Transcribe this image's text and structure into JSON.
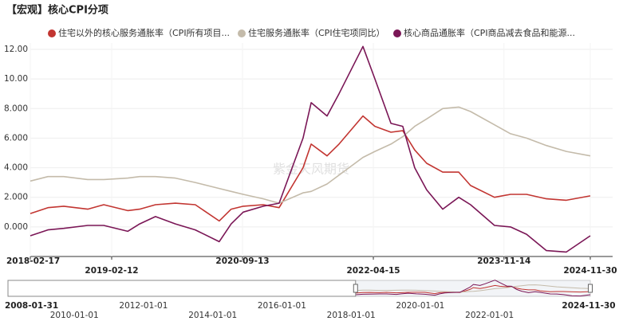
{
  "chart_data": {
    "type": "line",
    "title": "【宏观】核心CPI分项",
    "watermark": "紫金天风期货",
    "x": [
      "2018-02-17",
      "2018-05-06",
      "2018-07-15",
      "2018-10-29",
      "2019-01-08",
      "2019-04-24",
      "2019-06-16",
      "2019-08-25",
      "2019-11-21",
      "2020-02-17",
      "2020-06-02",
      "2020-07-25",
      "2020-09-16",
      "2020-12-14",
      "2021-02-22",
      "2021-06-08",
      "2021-07-14",
      "2021-09-22",
      "2021-11-14",
      "2022-02-28",
      "2022-04-22",
      "2022-07-02",
      "2022-08-23",
      "2022-10-15",
      "2022-12-07",
      "2023-02-16",
      "2023-04-28",
      "2023-06-19",
      "2023-10-03",
      "2023-12-13",
      "2024-02-22",
      "2024-05-20",
      "2024-08-16",
      "2024-11-30"
    ],
    "series": [
      {
        "name": "住宅以外的核心服务通胀率（CPI所有项目...",
        "color": "#c23531",
        "values": [
          0.9,
          1.3,
          1.4,
          1.2,
          1.5,
          1.1,
          1.2,
          1.5,
          1.6,
          1.5,
          0.4,
          1.2,
          1.4,
          1.5,
          1.3,
          4.0,
          5.6,
          4.8,
          5.6,
          7.5,
          6.8,
          6.4,
          6.5,
          5.2,
          4.3,
          3.7,
          3.7,
          2.8,
          2.0,
          2.2,
          2.2,
          1.9,
          1.8,
          2.1
        ]
      },
      {
        "name": "住宅服务通胀率（CPI住宅项同比）",
        "color": "#c4bbaa",
        "values": [
          3.1,
          3.4,
          3.4,
          3.2,
          3.2,
          3.3,
          3.4,
          3.4,
          3.3,
          3.0,
          2.6,
          2.4,
          2.2,
          1.9,
          1.6,
          2.3,
          2.4,
          2.9,
          3.5,
          4.7,
          5.1,
          5.6,
          6.1,
          6.8,
          7.3,
          8.0,
          8.1,
          7.8,
          6.9,
          6.3,
          6.0,
          5.5,
          5.1,
          4.8
        ]
      },
      {
        "name": "核心商品通胀率（CPI商品减去食品和能源...",
        "color": "#7a1656",
        "values": [
          -0.6,
          -0.2,
          -0.1,
          0.1,
          0.1,
          -0.3,
          0.2,
          0.7,
          0.2,
          -0.2,
          -1.0,
          0.2,
          1.0,
          1.4,
          1.6,
          6.0,
          8.4,
          7.5,
          9.0,
          12.2,
          10.0,
          7.0,
          6.8,
          4.0,
          2.5,
          1.2,
          2.0,
          1.5,
          0.1,
          0.0,
          -0.5,
          -1.6,
          -1.7,
          -0.6
        ]
      }
    ],
    "xlim": [
      "2018-02-17",
      "2024-11-30"
    ],
    "xticks": [
      "2018-02-17",
      "2019-02-12",
      "2020-09-13",
      "2022-04-15",
      "2023-11-14",
      "2024-11-30"
    ],
    "ylim": [
      -2,
      12
    ],
    "yticks": [
      {
        "value": 12,
        "label": "12.00"
      },
      {
        "value": 10,
        "label": "10.00"
      },
      {
        "value": 8,
        "label": "8.000"
      },
      {
        "value": 6,
        "label": "6.000"
      },
      {
        "value": 4,
        "label": "4.000"
      },
      {
        "value": 2,
        "label": "2.000"
      },
      {
        "value": 0,
        "label": "0.000"
      }
    ],
    "grid": true,
    "navigator": {
      "xlim": [
        "2008-01-31",
        "2024-11-30"
      ],
      "xticks": [
        "2008-01-31",
        "2010-01-01",
        "2012-01-01",
        "2014-01-01",
        "2016-01-01",
        "2018-01-01",
        "2020-01-01",
        "2022-01-01",
        "2024-11-30"
      ]
    }
  }
}
